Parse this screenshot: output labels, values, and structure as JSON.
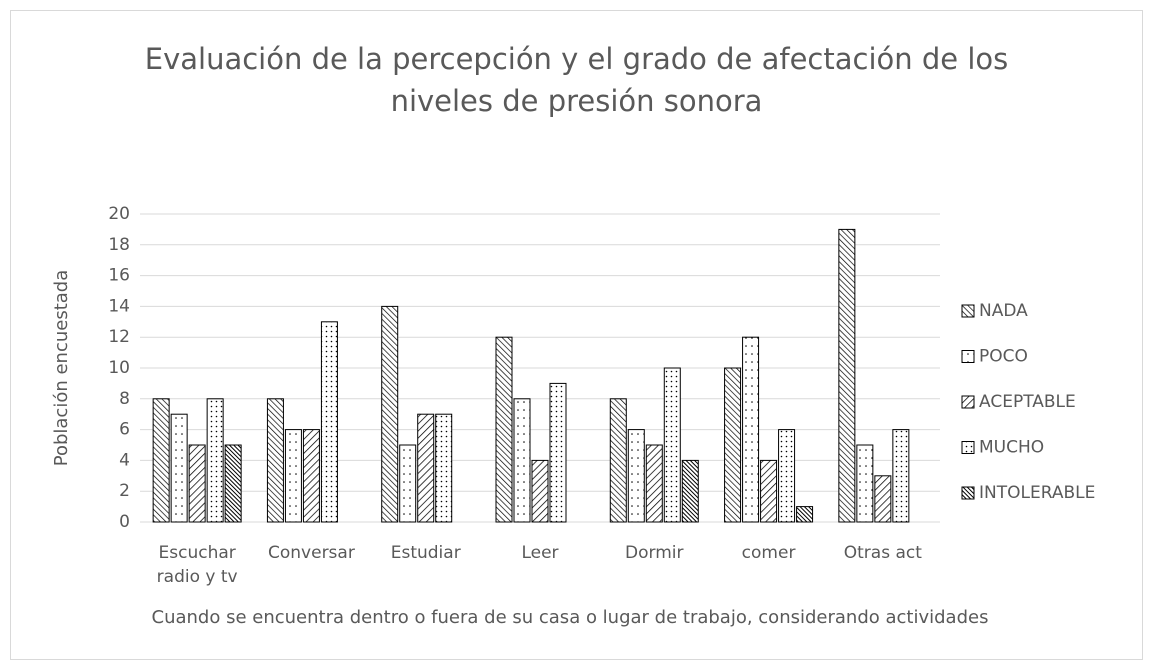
{
  "chart_data": {
    "type": "bar",
    "title": "Evaluación de la percepción y el grado de afectación de los niveles de presión sonora",
    "x_label": "Cuando se encuentra dentro o fuera de su casa o lugar de trabajo, considerando actividades",
    "y_label": "Población encuestada",
    "categories": [
      "Escuchar radio y tv",
      "Conversar",
      "Estudiar",
      "Leer",
      "Dormir",
      "comer",
      "Otras act"
    ],
    "series": [
      {
        "name": "NADA",
        "color": "#000000",
        "values": [
          8,
          8,
          14,
          12,
          8,
          10,
          19
        ]
      },
      {
        "name": "POCO",
        "color": "#000000",
        "values": [
          7,
          6,
          5,
          8,
          6,
          12,
          5
        ]
      },
      {
        "name": "ACEPTABLE",
        "color": "#000000",
        "values": [
          5,
          6,
          7,
          4,
          5,
          4,
          3
        ]
      },
      {
        "name": "MUCHO",
        "color": "#000000",
        "values": [
          8,
          13,
          7,
          9,
          10,
          6,
          6
        ]
      },
      {
        "name": "INTOLERABLE",
        "color": "#000000",
        "values": [
          5,
          0,
          0,
          0,
          4,
          1,
          0
        ]
      }
    ],
    "ylim": [
      0,
      20
    ],
    "yticks": [
      0,
      2,
      4,
      6,
      8,
      10,
      12,
      14,
      16,
      18,
      20
    ],
    "grid": true,
    "legend": "right"
  }
}
